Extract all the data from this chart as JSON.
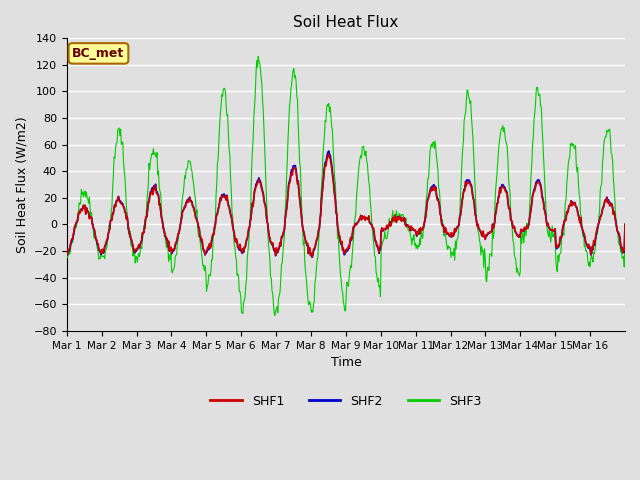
{
  "title": "Soil Heat Flux",
  "xlabel": "Time",
  "ylabel": "Soil Heat Flux (W/m2)",
  "ylim": [
    -80,
    140
  ],
  "yticks": [
    -80,
    -60,
    -40,
    -20,
    0,
    20,
    40,
    60,
    80,
    100,
    120,
    140
  ],
  "x_labels": [
    "Mar 1",
    "Mar 2",
    "Mar 3",
    "Mar 4",
    "Mar 5",
    "Mar 6",
    "Mar 7",
    "Mar 8",
    "Mar 9",
    "Mar 10",
    "Mar 11",
    "Mar 12",
    "Mar 13",
    "Mar 14",
    "Mar 15",
    "Mar 16"
  ],
  "background_color": "#e0e0e0",
  "plot_bg_color": "#e0e0e0",
  "grid_color": "#ffffff",
  "shf1_color": "#cc0000",
  "shf2_color": "#0000cc",
  "shf3_color": "#00cc00",
  "annotation_text": "BC_met",
  "annotation_bg": "#ffff99",
  "annotation_border": "#aa6600",
  "legend_entries": [
    "SHF1",
    "SHF2",
    "SHF3"
  ],
  "n_days": 16,
  "pts_per_day": 48
}
